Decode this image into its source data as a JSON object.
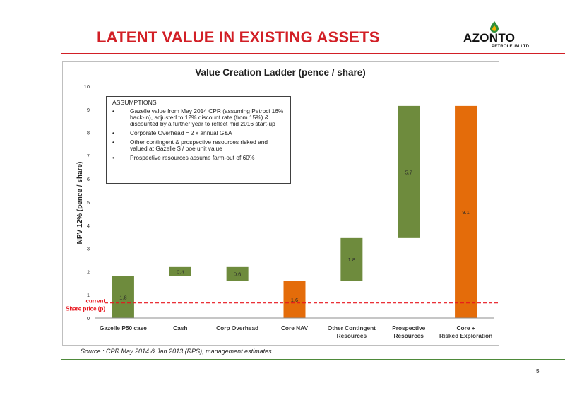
{
  "slide": {
    "title": "LATENT VALUE IN EXISTING ASSETS",
    "source": "Source : CPR May 2014 & Jan 2013 (RPS), management estimates",
    "page_number": "5"
  },
  "logo": {
    "word": "AZONTO",
    "sub": "PETROLEUM LTD"
  },
  "assumptions": {
    "title": "ASSUMPTIONS",
    "items": [
      "Gazelle value from May 2014 CPR (assuming Petroci 16% back-in), adjusted to 12% discount rate (from 15%) & discounted by a further year to reflect mid 2016 start-up",
      "Corporate Overhead = 2 x annual G&A",
      "Other contingent & prospective resources risked and valued at Gazelle $ / boe unit value",
      "Prospective resources assume farm-out of 60%"
    ]
  },
  "colors": {
    "title_red": "#d21f26",
    "green_bar": "#6e8b3d",
    "orange_bar": "#e46c0a",
    "share_price_line": "#e8141c",
    "footer_green": "#4e8a3a"
  },
  "chart_data": {
    "type": "bar",
    "subtype": "waterfall",
    "title": "Value Creation Ladder (pence / share)",
    "ylabel": "NPV 12% (pence / share)",
    "xlabel": "",
    "ylim": [
      0,
      10
    ],
    "yticks": [
      "0",
      "1",
      "2",
      "3",
      "4",
      "5",
      "6",
      "7",
      "8",
      "9",
      "10"
    ],
    "grid": false,
    "categories": [
      "Gazelle P50 case",
      "Cash",
      "Corp Overhead",
      "Core NAV",
      "Other Contingent Resources",
      "Prospective Resources",
      "Core + Risked Exploration"
    ],
    "bars": [
      {
        "base": 0,
        "top": 1.8,
        "label": "1.8",
        "color": "green"
      },
      {
        "base": 1.8,
        "top": 2.2,
        "label": "0.4",
        "color": "green"
      },
      {
        "base": 1.6,
        "top": 2.2,
        "label": "0.6",
        "color": "green"
      },
      {
        "base": 0,
        "top": 1.6,
        "label": "1.6",
        "color": "orange"
      },
      {
        "base": 1.6,
        "top": 3.45,
        "label": "1.8",
        "color": "green"
      },
      {
        "base": 3.45,
        "top": 9.15,
        "label": "5.7",
        "color": "green"
      },
      {
        "base": 0,
        "top": 9.15,
        "label": "9.1",
        "color": "orange"
      }
    ],
    "reference_line": {
      "value": 0.65,
      "label_line1": "current",
      "label_line2": "Share price (p)"
    }
  }
}
